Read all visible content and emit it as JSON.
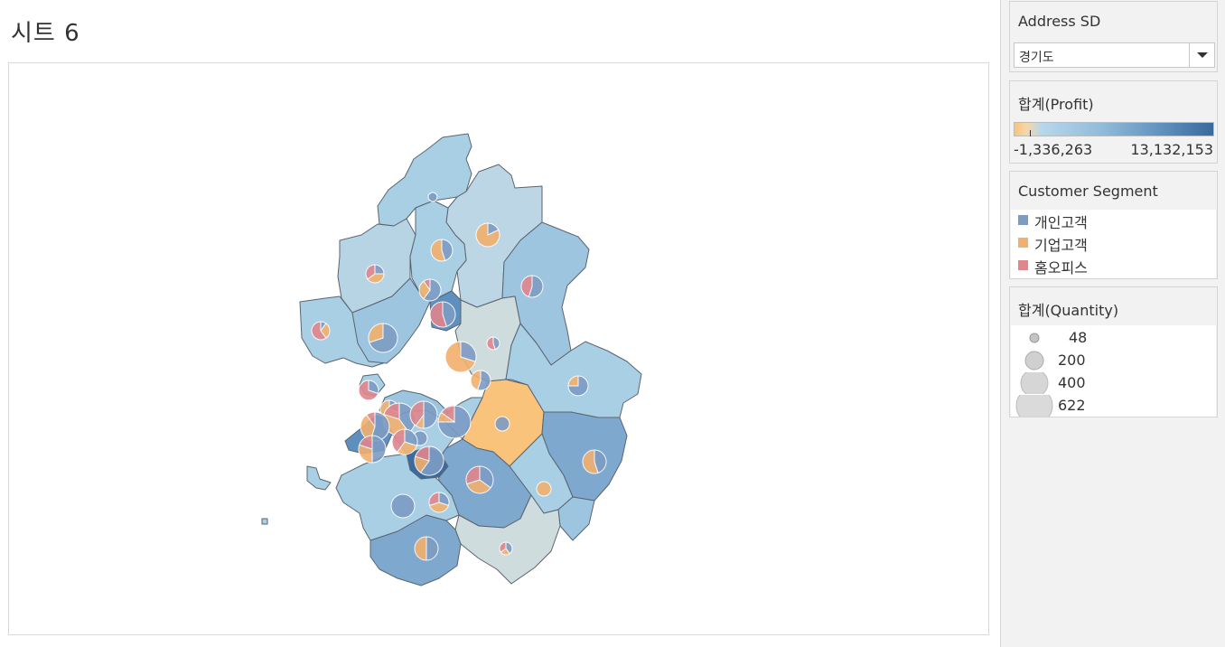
{
  "sheet": {
    "title": "시트 6"
  },
  "filters": {
    "address_sd": {
      "title": "Address SD",
      "selected": "경기도"
    }
  },
  "profit_legend": {
    "title": "합계(Profit)",
    "min_label": "-1,336,263",
    "max_label": "13,132,153",
    "colors": {
      "low": "#f9c37c",
      "mid": "#b7d7ea",
      "high": "#3a6a9c"
    }
  },
  "segment_legend": {
    "title": "Customer Segment",
    "items": [
      {
        "label": "개인고객",
        "color": "#7d9cc4"
      },
      {
        "label": "기업고객",
        "color": "#f2b06e"
      },
      {
        "label": "홈오피스",
        "color": "#e0868d"
      }
    ]
  },
  "quantity_legend": {
    "title": "합계(Quantity)",
    "items": [
      {
        "label": "48",
        "value": 48
      },
      {
        "label": "200",
        "value": 200
      },
      {
        "label": "400",
        "value": 400
      },
      {
        "label": "622",
        "value": 622
      }
    ]
  }
}
